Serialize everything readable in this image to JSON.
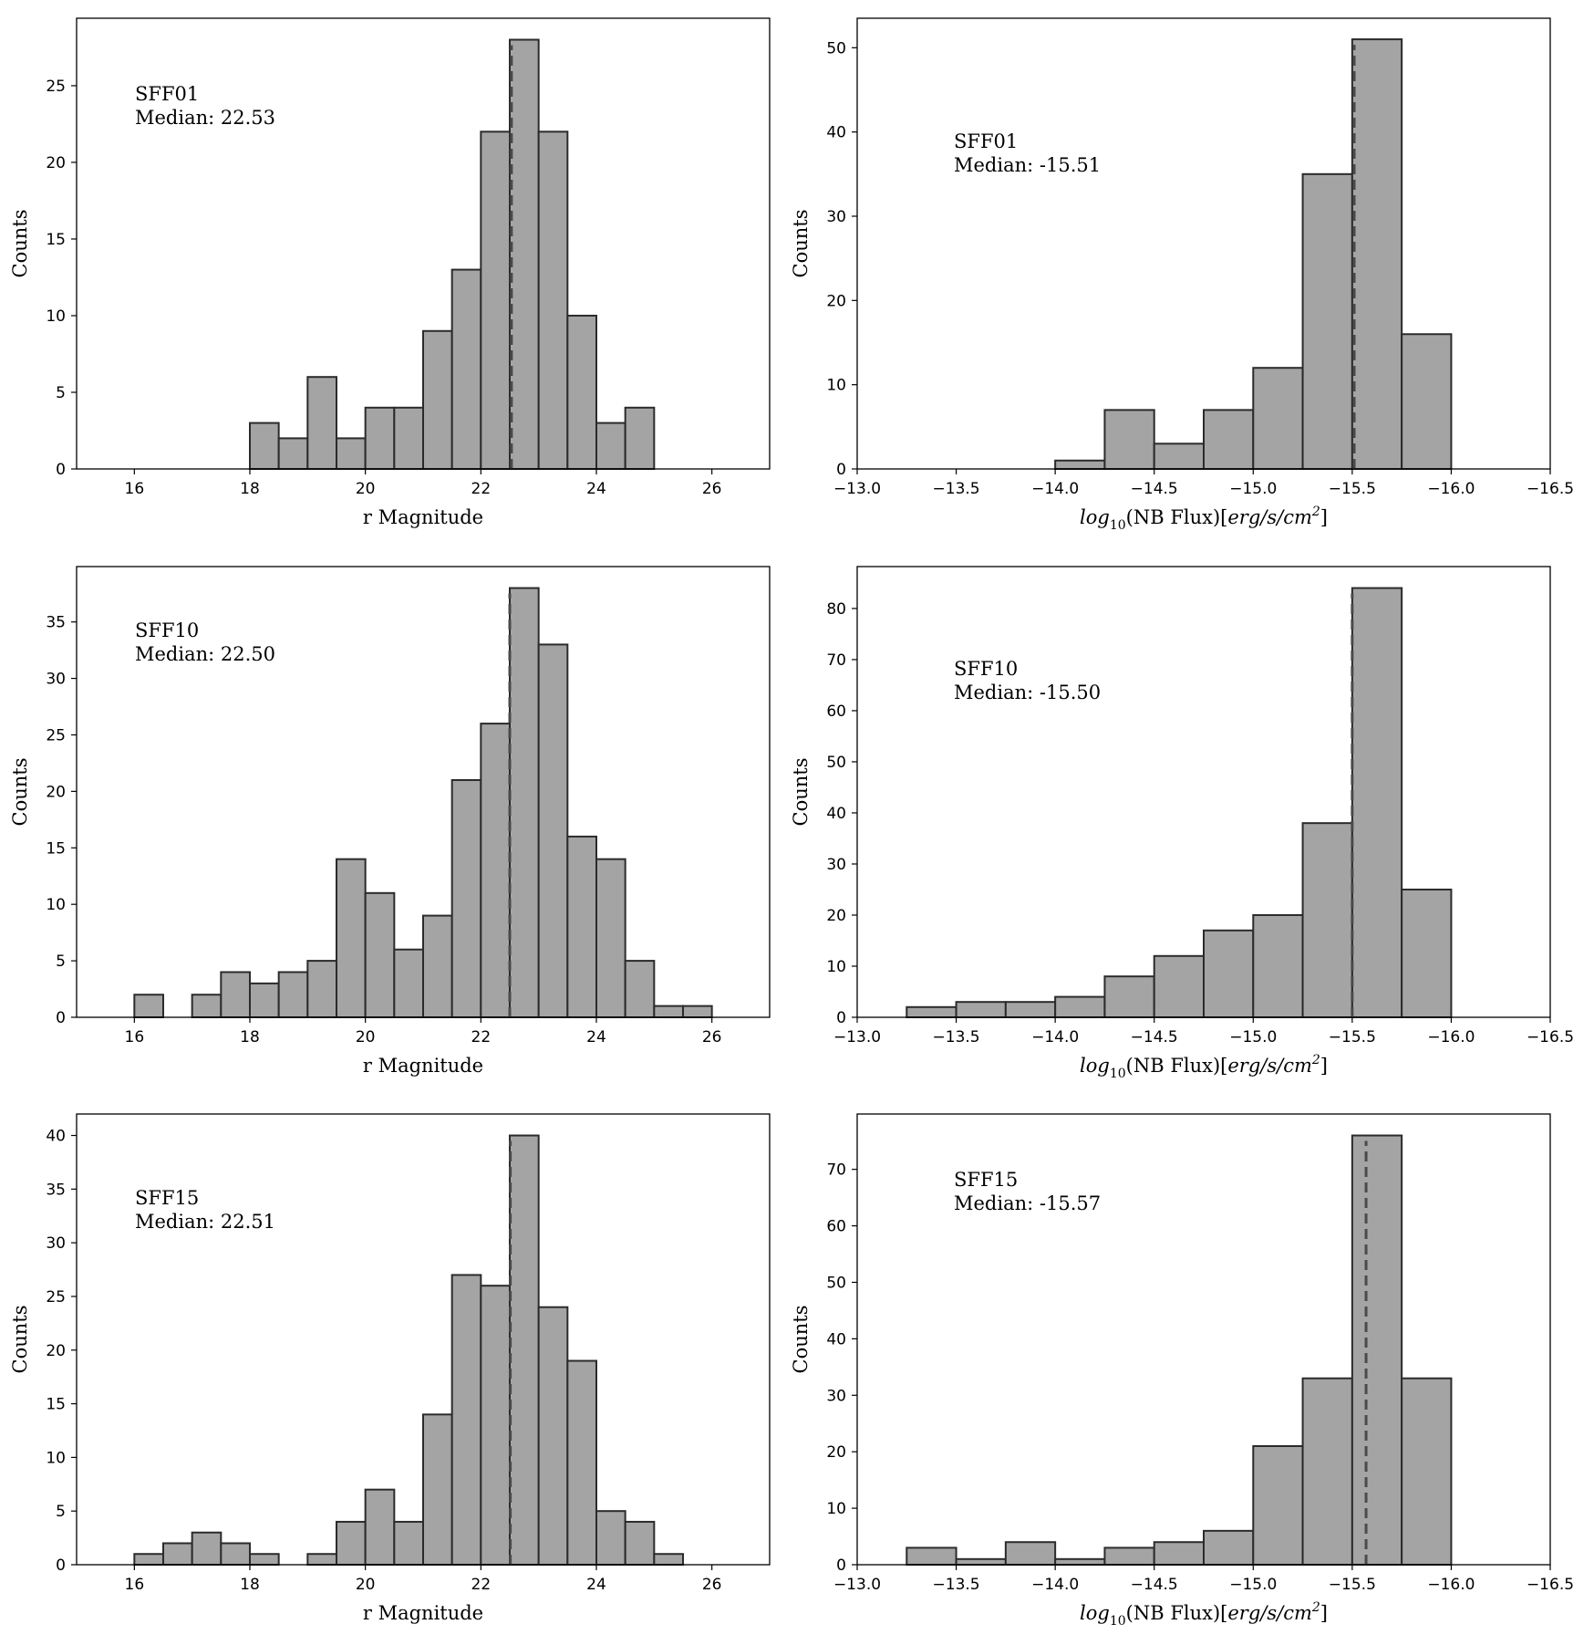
{
  "colors": {
    "bar_fill": "#a4a4a4",
    "bar_edge": "#2b2b2b",
    "median_line": "#4a4a4a",
    "axes": "#000000"
  },
  "chart_data": [
    {
      "type": "bar",
      "id": "mag-sff01",
      "xlabel": "r Magnitude",
      "ylabel": "Counts",
      "xlim": [
        15,
        27
      ],
      "ylim": [
        0,
        29.4
      ],
      "xticks": [
        16,
        18,
        20,
        22,
        24,
        26
      ],
      "yticks": [
        0,
        5,
        10,
        15,
        20,
        25
      ],
      "xtick_labels": [
        "16",
        "18",
        "20",
        "22",
        "24",
        "26"
      ],
      "ytick_labels": [
        "0",
        "5",
        "10",
        "15",
        "20",
        "25"
      ],
      "bin_start": 16,
      "bin_width": 0.5,
      "values": [
        0,
        0,
        0,
        0,
        3,
        2,
        6,
        2,
        4,
        4,
        9,
        13,
        22,
        28,
        22,
        10,
        3,
        4,
        0,
        0
      ],
      "median": 22.53,
      "annotation": {
        "name": "SFF01",
        "median_text": "Median: 22.53"
      }
    },
    {
      "type": "bar",
      "id": "flux-sff01",
      "xlabel_prefix": "log",
      "xlabel_sub": "10",
      "xlabel_mid": "(NB Flux)[",
      "xlabel_italic": "erg/s/cm",
      "xlabel_sup": "2",
      "xlabel_end": "]",
      "ylabel": "Counts",
      "xlim": [
        -13.0,
        -16.5
      ],
      "ylim": [
        0,
        53.5
      ],
      "xticks": [
        -13.0,
        -13.5,
        -14.0,
        -14.5,
        -15.0,
        -15.5,
        -16.0,
        -16.5
      ],
      "yticks": [
        0,
        10,
        20,
        30,
        40,
        50
      ],
      "xtick_labels": [
        "−13.0",
        "−13.5",
        "−14.0",
        "−14.5",
        "−15.0",
        "−15.5",
        "−16.0",
        "−16.5"
      ],
      "ytick_labels": [
        "0",
        "10",
        "20",
        "30",
        "40",
        "50"
      ],
      "bin_start": -13.0,
      "bin_width": -0.25,
      "values": [
        0,
        0,
        0,
        0,
        1,
        7,
        3,
        7,
        12,
        35,
        51,
        16,
        0,
        0
      ],
      "median": -15.51,
      "annotation": {
        "name": "SFF01",
        "median_text": "Median: -15.51"
      }
    },
    {
      "type": "bar",
      "id": "mag-sff10",
      "xlabel": "r Magnitude",
      "ylabel": "Counts",
      "xlim": [
        15,
        27
      ],
      "ylim": [
        0,
        39.9
      ],
      "xticks": [
        16,
        18,
        20,
        22,
        24,
        26
      ],
      "yticks": [
        0,
        5,
        10,
        15,
        20,
        25,
        30,
        35
      ],
      "xtick_labels": [
        "16",
        "18",
        "20",
        "22",
        "24",
        "26"
      ],
      "ytick_labels": [
        "0",
        "5",
        "10",
        "15",
        "20",
        "25",
        "30",
        "35"
      ],
      "bin_start": 16,
      "bin_width": 0.5,
      "values": [
        2,
        0,
        2,
        4,
        3,
        4,
        5,
        14,
        11,
        6,
        9,
        21,
        26,
        38,
        33,
        16,
        14,
        5,
        1,
        1
      ],
      "median": 22.5,
      "annotation": {
        "name": "SFF10",
        "median_text": "Median: 22.50"
      }
    },
    {
      "type": "bar",
      "id": "flux-sff10",
      "xlabel_prefix": "log",
      "xlabel_sub": "10",
      "xlabel_mid": "(NB Flux)[",
      "xlabel_italic": "erg/s/cm",
      "xlabel_sup": "2",
      "xlabel_end": "]",
      "ylabel": "Counts",
      "xlim": [
        -13.0,
        -16.5
      ],
      "ylim": [
        0,
        88.2
      ],
      "xticks": [
        -13.0,
        -13.5,
        -14.0,
        -14.5,
        -15.0,
        -15.5,
        -16.0,
        -16.5
      ],
      "yticks": [
        0,
        10,
        20,
        30,
        40,
        50,
        60,
        70,
        80
      ],
      "xtick_labels": [
        "−13.0",
        "−13.5",
        "−14.0",
        "−14.5",
        "−15.0",
        "−15.5",
        "−16.0",
        "−16.5"
      ],
      "ytick_labels": [
        "0",
        "10",
        "20",
        "30",
        "40",
        "50",
        "60",
        "70",
        "80"
      ],
      "bin_start": -13.0,
      "bin_width": -0.25,
      "values": [
        0,
        2,
        3,
        3,
        4,
        8,
        12,
        17,
        20,
        38,
        84,
        25,
        0,
        0
      ],
      "median": -15.5,
      "annotation": {
        "name": "SFF10",
        "median_text": "Median: -15.50"
      }
    },
    {
      "type": "bar",
      "id": "mag-sff15",
      "xlabel": "r Magnitude",
      "ylabel": "Counts",
      "xlim": [
        15,
        27
      ],
      "ylim": [
        0,
        42
      ],
      "xticks": [
        16,
        18,
        20,
        22,
        24,
        26
      ],
      "yticks": [
        0,
        5,
        10,
        15,
        20,
        25,
        30,
        35,
        40
      ],
      "xtick_labels": [
        "16",
        "18",
        "20",
        "22",
        "24",
        "26"
      ],
      "ytick_labels": [
        "0",
        "5",
        "10",
        "15",
        "20",
        "25",
        "30",
        "35",
        "40"
      ],
      "bin_start": 16,
      "bin_width": 0.5,
      "values": [
        1,
        2,
        3,
        2,
        1,
        0,
        1,
        4,
        7,
        4,
        14,
        27,
        26,
        40,
        24,
        19,
        5,
        4,
        1,
        0
      ],
      "median": 22.51,
      "annotation": {
        "name": "SFF15",
        "median_text": "Median: 22.51"
      }
    },
    {
      "type": "bar",
      "id": "flux-sff15",
      "xlabel_prefix": "log",
      "xlabel_sub": "10",
      "xlabel_mid": "(NB Flux)[",
      "xlabel_italic": "erg/s/cm",
      "xlabel_sup": "2",
      "xlabel_end": "]",
      "ylabel": "Counts",
      "xlim": [
        -13.0,
        -16.5
      ],
      "ylim": [
        0,
        79.8
      ],
      "xticks": [
        -13.0,
        -13.5,
        -14.0,
        -14.5,
        -15.0,
        -15.5,
        -16.0,
        -16.5
      ],
      "yticks": [
        0,
        10,
        20,
        30,
        40,
        50,
        60,
        70
      ],
      "xtick_labels": [
        "−13.0",
        "−13.5",
        "−14.0",
        "−14.5",
        "−15.0",
        "−15.5",
        "−16.0",
        "−16.5"
      ],
      "ytick_labels": [
        "0",
        "10",
        "20",
        "30",
        "40",
        "50",
        "60",
        "70"
      ],
      "bin_start": -13.0,
      "bin_width": -0.25,
      "values": [
        0,
        3,
        1,
        4,
        1,
        3,
        4,
        6,
        21,
        33,
        76,
        33,
        0,
        0
      ],
      "median": -15.57,
      "annotation": {
        "name": "SFF15",
        "median_text": "Median: -15.57"
      }
    }
  ]
}
